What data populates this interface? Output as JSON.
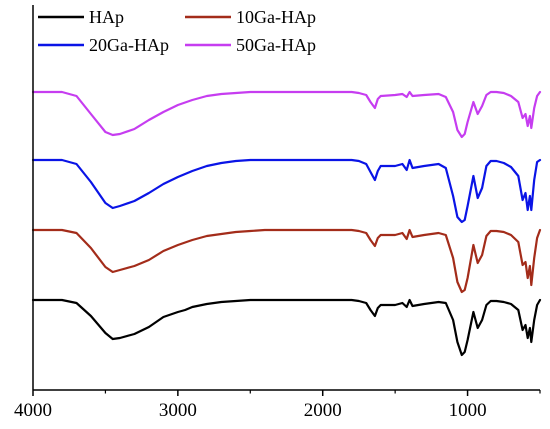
{
  "chart_data": {
    "type": "line",
    "xlim": [
      4000,
      500
    ],
    "x_reversed": true,
    "xticks": [
      4000,
      3000,
      2000,
      1000
    ],
    "xtick_labels": [
      "4000",
      "3000",
      "2000",
      "1000"
    ],
    "y_ticks_shown": false,
    "grid": false,
    "legend": {
      "placement": "top-left",
      "columns": 2,
      "entries": [
        "HAp",
        "10Ga-HAp",
        "20Ga-HAp",
        "50Ga-HAp"
      ]
    },
    "series": [
      {
        "name": "HAp",
        "color": "#000000",
        "offset": 0,
        "x": [
          4000,
          3800,
          3700,
          3600,
          3500,
          3450,
          3400,
          3300,
          3200,
          3100,
          3000,
          2950,
          2900,
          2800,
          2700,
          2600,
          2500,
          2400,
          2300,
          2200,
          2100,
          2000,
          1900,
          1800,
          1750,
          1700,
          1670,
          1640,
          1620,
          1600,
          1500,
          1450,
          1420,
          1400,
          1380,
          1300,
          1200,
          1150,
          1100,
          1070,
          1040,
          1020,
          1000,
          960,
          930,
          900,
          870,
          840,
          800,
          750,
          700,
          650,
          620,
          600,
          585,
          570,
          560,
          540,
          520,
          500
        ],
        "y": [
          0.0,
          0.0,
          -3,
          -16,
          -33,
          -39,
          -38,
          -34,
          -27,
          -17,
          -12,
          -10,
          -7,
          -4,
          -2,
          -1,
          0,
          0,
          0,
          0,
          0,
          0,
          0,
          0,
          -1,
          -3,
          -10,
          -16,
          -8,
          -5,
          -5,
          -3,
          -7,
          0,
          -6,
          -4,
          -2,
          -3,
          -20,
          -42,
          -55,
          -52,
          -40,
          -12,
          -28,
          -20,
          -5,
          -1,
          -1,
          -2,
          -4,
          -10,
          -30,
          -25,
          -38,
          -28,
          -42,
          -20,
          -5,
          0
        ]
      },
      {
        "name": "10Ga-HAp",
        "color": "#A32C1A",
        "offset": 70,
        "x": [
          4000,
          3800,
          3700,
          3600,
          3500,
          3450,
          3400,
          3300,
          3200,
          3100,
          3000,
          2900,
          2800,
          2700,
          2600,
          2500,
          2400,
          2300,
          2200,
          2100,
          2000,
          1900,
          1800,
          1750,
          1700,
          1670,
          1640,
          1620,
          1600,
          1500,
          1450,
          1420,
          1400,
          1380,
          1300,
          1200,
          1150,
          1100,
          1070,
          1040,
          1020,
          1000,
          960,
          930,
          900,
          870,
          840,
          800,
          750,
          700,
          650,
          620,
          600,
          585,
          570,
          560,
          540,
          520,
          500
        ],
        "y": [
          0.0,
          0.0,
          -3,
          -18,
          -37,
          -42,
          -40,
          -36,
          -30,
          -21,
          -15,
          -10,
          -6,
          -4,
          -2,
          -1,
          0,
          0,
          0,
          0,
          0,
          0,
          0,
          -1,
          -3,
          -10,
          -16,
          -8,
          -5,
          -5,
          -3,
          -9,
          0,
          -7,
          -5,
          -3,
          -5,
          -28,
          -52,
          -62,
          -60,
          -48,
          -15,
          -33,
          -25,
          -6,
          -1,
          -1,
          -2,
          -5,
          -12,
          -35,
          -32,
          -48,
          -36,
          -55,
          -28,
          -8,
          0
        ]
      },
      {
        "name": "20Ga-HAp",
        "color": "#0A14E6",
        "offset": 140,
        "x": [
          4000,
          3800,
          3700,
          3600,
          3500,
          3450,
          3400,
          3300,
          3200,
          3100,
          3000,
          2900,
          2800,
          2700,
          2600,
          2500,
          2400,
          2300,
          2200,
          2100,
          2000,
          1900,
          1800,
          1750,
          1700,
          1670,
          1640,
          1620,
          1600,
          1500,
          1450,
          1420,
          1400,
          1380,
          1300,
          1200,
          1150,
          1100,
          1070,
          1040,
          1020,
          1000,
          960,
          930,
          900,
          870,
          840,
          800,
          750,
          700,
          650,
          620,
          600,
          585,
          570,
          560,
          540,
          520,
          500
        ],
        "y": [
          0.0,
          0.0,
          -4,
          -22,
          -43,
          -48,
          -46,
          -41,
          -33,
          -24,
          -17,
          -11,
          -6,
          -3,
          -1,
          0,
          0,
          0,
          0,
          0,
          0,
          0,
          0,
          -1,
          -4,
          -12,
          -20,
          -11,
          -6,
          -6,
          -4,
          -10,
          0,
          -8,
          -6,
          -4,
          -8,
          -36,
          -57,
          -62,
          -60,
          -46,
          -16,
          -38,
          -28,
          -6,
          -1,
          -1,
          -3,
          -7,
          -16,
          -40,
          -33,
          -50,
          -36,
          -50,
          -20,
          -2,
          0
        ]
      },
      {
        "name": "50Ga-HAp",
        "color": "#C63DF0",
        "offset": 208,
        "x": [
          4000,
          3800,
          3700,
          3600,
          3500,
          3450,
          3400,
          3300,
          3200,
          3100,
          3000,
          2900,
          2800,
          2700,
          2600,
          2500,
          2400,
          2300,
          2200,
          2100,
          2000,
          1900,
          1800,
          1750,
          1700,
          1670,
          1640,
          1620,
          1600,
          1500,
          1450,
          1420,
          1400,
          1380,
          1300,
          1200,
          1150,
          1100,
          1070,
          1040,
          1020,
          1000,
          960,
          930,
          900,
          870,
          840,
          800,
          750,
          700,
          650,
          620,
          600,
          585,
          570,
          560,
          540,
          520,
          500
        ],
        "y": [
          0.0,
          0.0,
          -4,
          -22,
          -40,
          -43,
          -42,
          -37,
          -28,
          -20,
          -13,
          -8,
          -4,
          -2,
          -1,
          0,
          0,
          0,
          0,
          0,
          0,
          0,
          0,
          -1,
          -3,
          -10,
          -16,
          -7,
          -4,
          -3,
          -2,
          -5,
          0,
          -4,
          -3,
          -2,
          -5,
          -20,
          -38,
          -45,
          -42,
          -30,
          -10,
          -22,
          -14,
          -3,
          0,
          0,
          -1,
          -4,
          -10,
          -26,
          -22,
          -34,
          -24,
          -36,
          -16,
          -4,
          0
        ]
      }
    ]
  }
}
